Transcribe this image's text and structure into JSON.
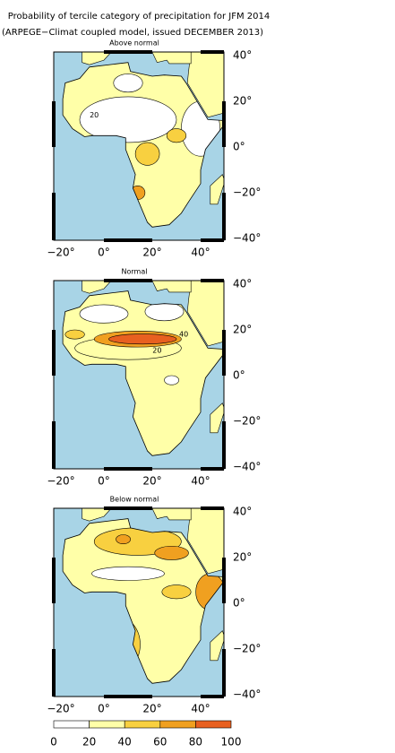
{
  "header": {
    "title": [
      "Probability of tercile category of precipitation for JFM 2014",
      "(ARPEGE−Climat coupled model, issued DECEMBER 2013)"
    ]
  },
  "panels": [
    {
      "title": "Above normal",
      "lon_ticks": [
        "−20°",
        "0°",
        "20°",
        "40°"
      ],
      "lat_ticks": [
        "40°",
        "20°",
        "0°",
        "−20°",
        "−40°"
      ],
      "contour_labels": [
        "20"
      ]
    },
    {
      "title": "Normal",
      "lon_ticks": [
        "−20°",
        "0°",
        "20°",
        "40°"
      ],
      "lat_ticks": [
        "40°",
        "20°",
        "0°",
        "−20°",
        "−40°"
      ],
      "contour_labels": [
        "20",
        "40"
      ]
    },
    {
      "title": "Below normal",
      "lon_ticks": [
        "−20°",
        "0°",
        "20°",
        "40°"
      ],
      "lat_ticks": [
        "40°",
        "20°",
        "0°",
        "−20°",
        "−40°"
      ],
      "contour_labels": []
    }
  ],
  "colorbar": {
    "ticks": [
      "0",
      "20",
      "40",
      "60",
      "80",
      "100"
    ],
    "colors": [
      "#ffffff",
      "#ffffa8",
      "#f8d040",
      "#f0a020",
      "#e86020"
    ]
  }
}
